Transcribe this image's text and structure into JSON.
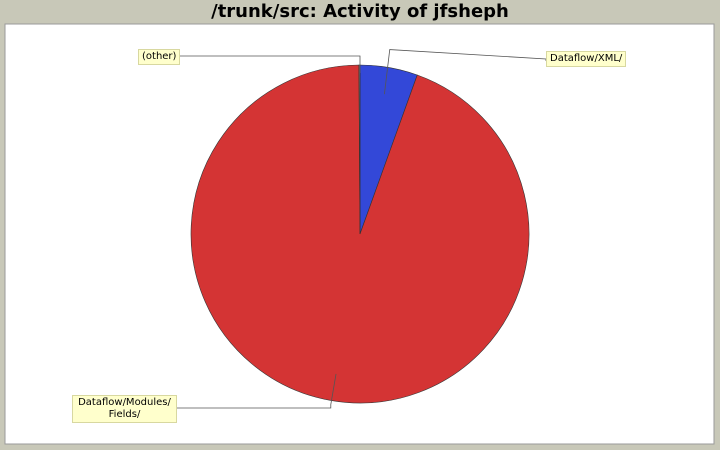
{
  "chart_data": {
    "type": "pie",
    "title": "/trunk/src: Activity of jfsheph",
    "slices": [
      {
        "label": "Dataflow/XML/",
        "value": 5.5,
        "color": "#3348d8"
      },
      {
        "label": "Dataflow/Modules/ Fields/",
        "value": 94.4,
        "color": "#d43434"
      },
      {
        "label": "(other)",
        "value": 0.1,
        "color": "#8a8a8a"
      }
    ]
  }
}
